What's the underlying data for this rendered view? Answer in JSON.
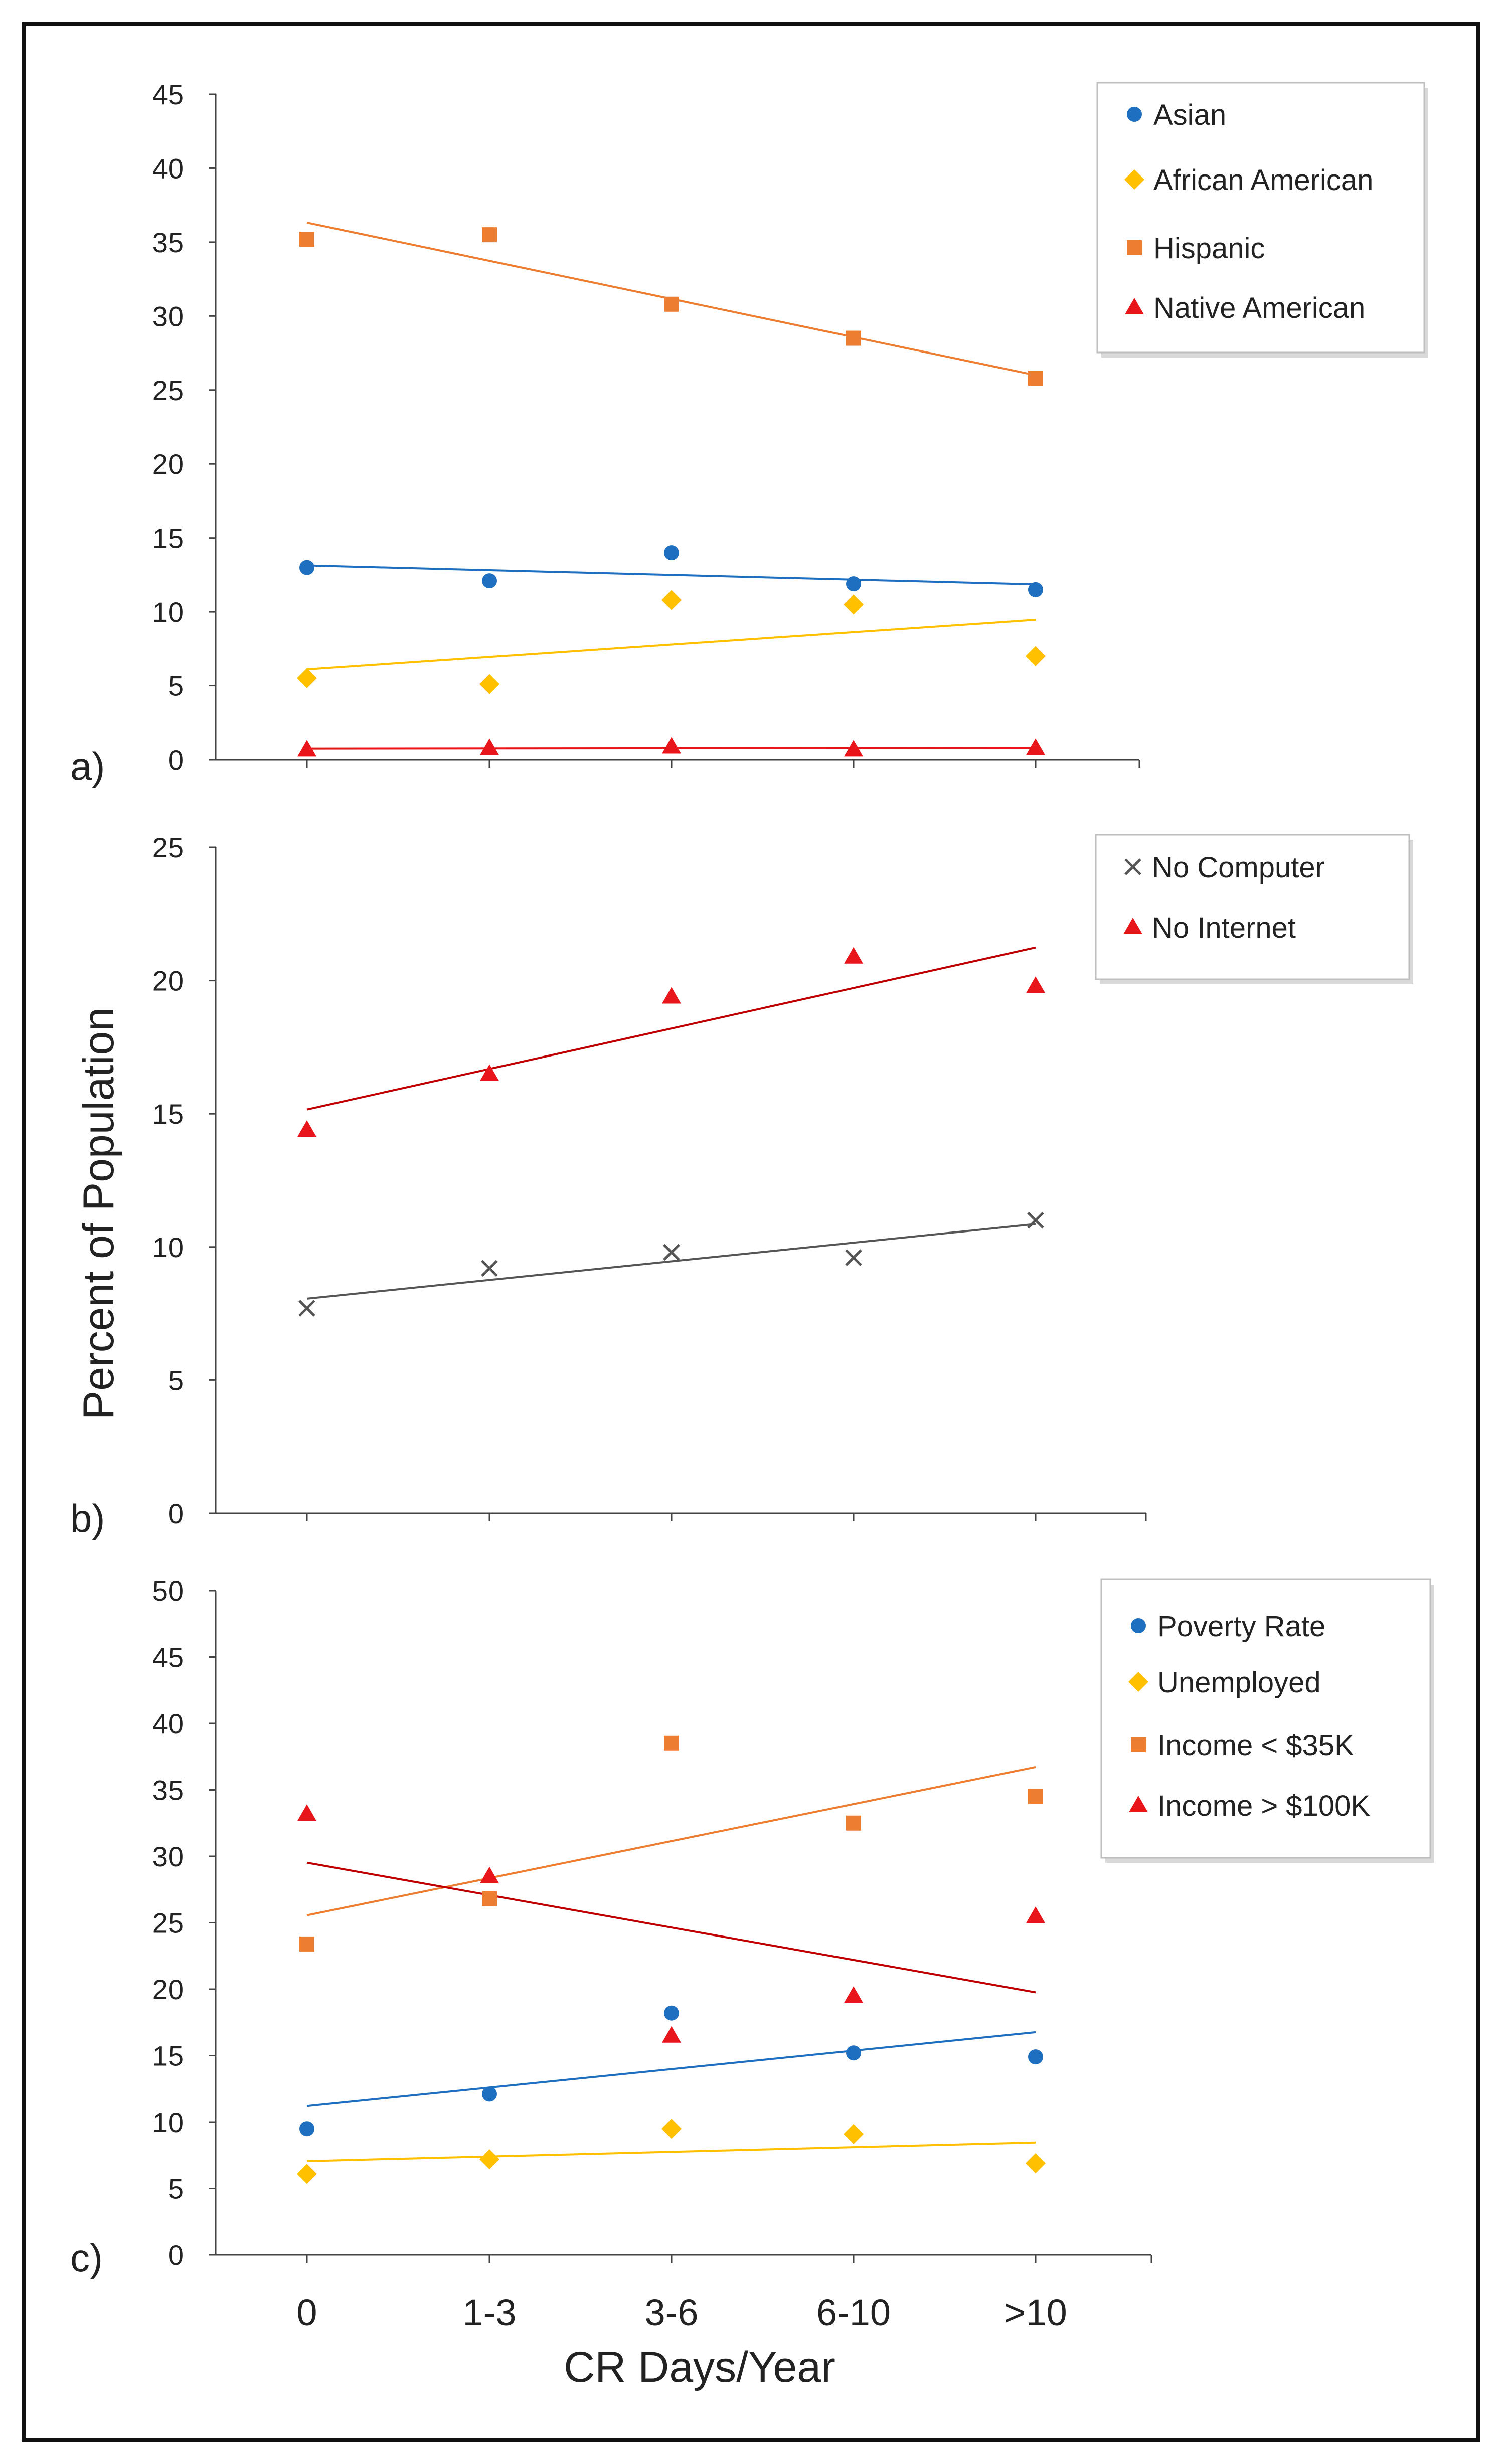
{
  "figure": {
    "ylabel": "Percent of Population",
    "xlabel": "CR Days/Year"
  },
  "colors": {
    "blue": "#1f6fc0",
    "yellow": "#ffc000",
    "orange": "#ed7d31",
    "red": "#e8161b",
    "darkred": "#c00000",
    "gray": "#555555"
  },
  "chart_data": [
    {
      "panel": "a)",
      "type": "scatter",
      "categories": [
        "0",
        "1-3",
        "3-6",
        "6-10",
        ">10"
      ],
      "ylim": [
        0,
        45
      ],
      "yticks": [
        "0",
        "5",
        "10",
        "15",
        "20",
        "25",
        "30",
        "35",
        "40",
        "45"
      ],
      "trendlines": true,
      "series": [
        {
          "name": "Asian",
          "marker": "circle",
          "color": "#1f6fc0",
          "values": [
            13.0,
            12.1,
            14.0,
            11.9,
            11.5
          ]
        },
        {
          "name": "African American",
          "marker": "diamond",
          "color": "#ffc000",
          "values": [
            5.5,
            5.1,
            10.8,
            10.5,
            7.0
          ]
        },
        {
          "name": "Hispanic",
          "marker": "square",
          "color": "#ed7d31",
          "values": [
            35.2,
            35.5,
            30.8,
            28.5,
            25.8
          ]
        },
        {
          "name": "Native American",
          "marker": "triangle",
          "color": "#e8161b",
          "values": [
            0.7,
            0.8,
            0.9,
            0.7,
            0.8
          ]
        }
      ]
    },
    {
      "panel": "b)",
      "type": "scatter",
      "categories": [
        "0",
        "1-3",
        "3-6",
        "6-10",
        ">10"
      ],
      "ylim": [
        0,
        25
      ],
      "yticks": [
        "0",
        "5",
        "10",
        "15",
        "20",
        "25"
      ],
      "trendlines": true,
      "series": [
        {
          "name": "No Computer",
          "marker": "x",
          "color": "#555555",
          "values": [
            7.7,
            9.2,
            9.8,
            9.6,
            11.0
          ]
        },
        {
          "name": "No Internet",
          "marker": "triangle",
          "color": "#e8161b",
          "line_color": "#c00000",
          "values": [
            14.4,
            16.5,
            19.4,
            20.9,
            19.8
          ]
        }
      ]
    },
    {
      "panel": "c)",
      "type": "scatter",
      "categories": [
        "0",
        "1-3",
        "3-6",
        "6-10",
        ">10"
      ],
      "ylim": [
        0,
        50
      ],
      "yticks": [
        "0",
        "5",
        "10",
        "15",
        "20",
        "25",
        "30",
        "35",
        "40",
        "45",
        "50"
      ],
      "trendlines": true,
      "series": [
        {
          "name": "Poverty Rate",
          "marker": "circle",
          "color": "#1f6fc0",
          "values": [
            9.5,
            12.1,
            18.2,
            15.2,
            14.9
          ]
        },
        {
          "name": "Unemployed",
          "marker": "diamond",
          "color": "#ffc000",
          "values": [
            6.1,
            7.2,
            9.5,
            9.1,
            6.9
          ]
        },
        {
          "name": "Income < $35K",
          "marker": "square",
          "color": "#ed7d31",
          "values": [
            23.4,
            26.8,
            38.5,
            32.5,
            34.5
          ]
        },
        {
          "name": "Income > $100K",
          "marker": "triangle",
          "color": "#e8161b",
          "line_color": "#c00000",
          "values": [
            33.2,
            28.5,
            16.5,
            19.5,
            25.5
          ]
        }
      ]
    }
  ]
}
